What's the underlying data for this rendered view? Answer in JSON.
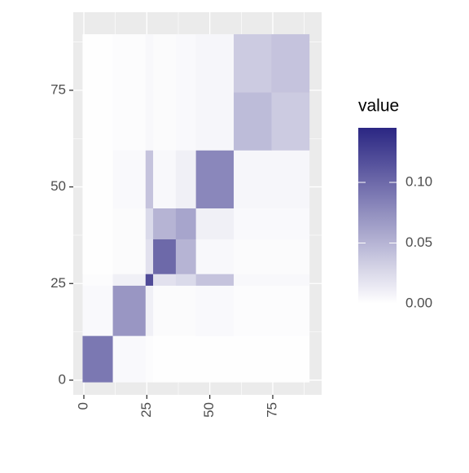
{
  "chart_data": {
    "type": "heatmap",
    "x_bins": [
      -0.5,
      11.5,
      24.5,
      27.5,
      36.5,
      44.5,
      59.5,
      74.5,
      89.5
    ],
    "y_bins": [
      -0.5,
      11.5,
      24.5,
      27.5,
      36.5,
      44.5,
      59.5,
      74.5,
      89.5
    ],
    "values": [
      [
        0.09,
        0.004,
        0.002,
        0.001,
        0.001,
        0.001,
        0.001,
        0.001
      ],
      [
        0.004,
        0.07,
        0.01,
        0.003,
        0.003,
        0.004,
        0.002,
        0.002
      ],
      [
        0.002,
        0.01,
        0.12,
        0.02,
        0.025,
        0.04,
        0.005,
        0.005
      ],
      [
        0.001,
        0.003,
        0.02,
        0.1,
        0.05,
        0.005,
        0.003,
        0.003
      ],
      [
        0.001,
        0.003,
        0.025,
        0.05,
        0.06,
        0.01,
        0.004,
        0.004
      ],
      [
        0.001,
        0.004,
        0.04,
        0.005,
        0.01,
        0.08,
        0.006,
        0.006
      ],
      [
        0.001,
        0.002,
        0.005,
        0.003,
        0.004,
        0.006,
        0.045,
        0.035
      ],
      [
        0.001,
        0.002,
        0.005,
        0.003,
        0.004,
        0.006,
        0.035,
        0.04
      ]
    ],
    "xlim": [
      -4.2,
      94.4
    ],
    "ylim": [
      -3.8,
      95.2
    ],
    "xticks": [
      0,
      25,
      50,
      75
    ],
    "yticks": [
      0,
      25,
      50,
      75
    ],
    "grid": true,
    "legend_title": "value",
    "colorlim": [
      0,
      0.145
    ],
    "colorticks": [
      {
        "value": 0,
        "label": "0.00"
      },
      {
        "value": 0.05,
        "label": "0.05"
      },
      {
        "value": 0.1,
        "label": "0.10"
      }
    ],
    "low_color": "#ffffff",
    "high_color": "#2b2683"
  }
}
